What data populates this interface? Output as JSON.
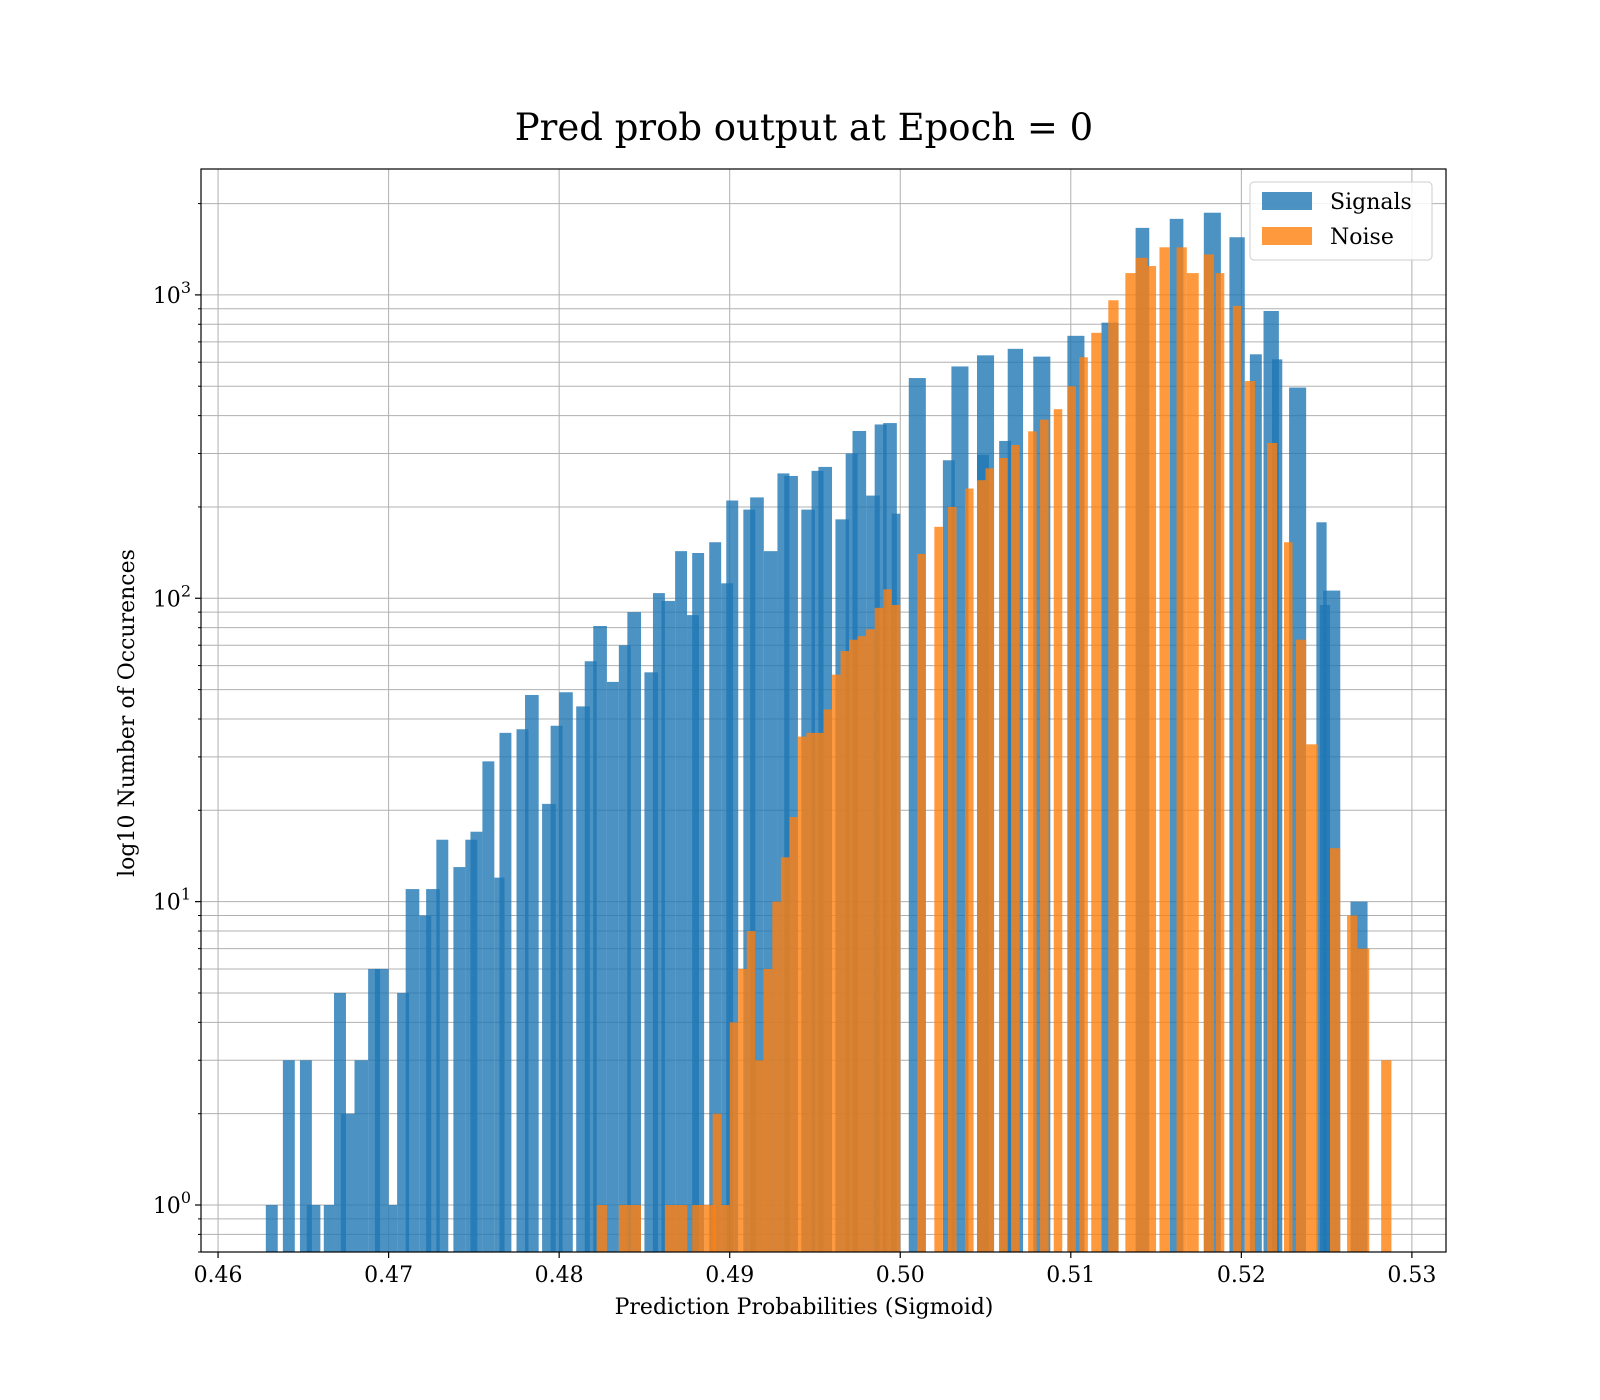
{
  "chart_data": {
    "type": "bar",
    "title": "Pred prob output at Epoch = 0",
    "xlabel": "Prediction Probabilities (Sigmoid)",
    "ylabel": "log10 Number of Occurences",
    "xlim": [
      0.459,
      0.532
    ],
    "ylim": [
      0.7,
      2600
    ],
    "yscale": "log",
    "grid": true,
    "legend_position": "top-right",
    "x_ticks": [
      "0.46",
      "0.47",
      "0.48",
      "0.49",
      "0.50",
      "0.51",
      "0.52",
      "0.53"
    ],
    "x_tick_values": [
      0.46,
      0.47,
      0.48,
      0.49,
      0.5,
      0.51,
      0.52,
      0.53
    ],
    "y_ticks": [
      {
        "base": "10",
        "exp": "0",
        "value": 1
      },
      {
        "base": "10",
        "exp": "1",
        "value": 10
      },
      {
        "base": "10",
        "exp": "2",
        "value": 100
      },
      {
        "base": "10",
        "exp": "3",
        "value": 1000
      }
    ],
    "series": [
      {
        "name": "Signals",
        "color": "#1f77b4",
        "bars": [
          [
            0.4628,
            0.4635,
            1
          ],
          [
            0.4638,
            0.4645,
            3
          ],
          [
            0.4648,
            0.4655,
            3
          ],
          [
            0.4652,
            0.466,
            1
          ],
          [
            0.4662,
            0.4668,
            1
          ],
          [
            0.4668,
            0.4675,
            5
          ],
          [
            0.4672,
            0.468,
            2
          ],
          [
            0.468,
            0.4688,
            3
          ],
          [
            0.4688,
            0.4695,
            6
          ],
          [
            0.4692,
            0.47,
            6
          ],
          [
            0.47,
            0.4705,
            1
          ],
          [
            0.4705,
            0.4712,
            5
          ],
          [
            0.471,
            0.4718,
            11
          ],
          [
            0.4718,
            0.4725,
            9
          ],
          [
            0.4722,
            0.473,
            11
          ],
          [
            0.4728,
            0.4735,
            16
          ],
          [
            0.4738,
            0.4745,
            13
          ],
          [
            0.4745,
            0.4752,
            16
          ],
          [
            0.4748,
            0.4755,
            17
          ],
          [
            0.4755,
            0.4762,
            29
          ],
          [
            0.4762,
            0.4768,
            12
          ],
          [
            0.4765,
            0.4772,
            36
          ],
          [
            0.4775,
            0.4782,
            37
          ],
          [
            0.478,
            0.4788,
            48
          ],
          [
            0.479,
            0.4798,
            21
          ],
          [
            0.4795,
            0.4802,
            38
          ],
          [
            0.48,
            0.4808,
            49
          ],
          [
            0.481,
            0.4818,
            44
          ],
          [
            0.4815,
            0.4822,
            62
          ],
          [
            0.482,
            0.4828,
            81
          ],
          [
            0.4828,
            0.4835,
            53
          ],
          [
            0.4835,
            0.4842,
            70
          ],
          [
            0.484,
            0.4848,
            90
          ],
          [
            0.485,
            0.4858,
            57
          ],
          [
            0.4855,
            0.4862,
            104
          ],
          [
            0.486,
            0.4868,
            98
          ],
          [
            0.4868,
            0.4875,
            143
          ],
          [
            0.4875,
            0.4882,
            88
          ],
          [
            0.4878,
            0.4885,
            141
          ],
          [
            0.4888,
            0.4895,
            153
          ],
          [
            0.4895,
            0.4902,
            112
          ],
          [
            0.4898,
            0.4905,
            210
          ],
          [
            0.4908,
            0.4915,
            196
          ],
          [
            0.4912,
            0.492,
            215
          ],
          [
            0.492,
            0.4928,
            143
          ],
          [
            0.4928,
            0.4935,
            258
          ],
          [
            0.4932,
            0.494,
            253
          ],
          [
            0.4942,
            0.495,
            196
          ],
          [
            0.4948,
            0.4955,
            263
          ],
          [
            0.4952,
            0.496,
            271
          ],
          [
            0.4962,
            0.497,
            182
          ],
          [
            0.4968,
            0.4975,
            300
          ],
          [
            0.4972,
            0.498,
            356
          ],
          [
            0.498,
            0.4988,
            218
          ],
          [
            0.4985,
            0.4992,
            374
          ],
          [
            0.499,
            0.4998,
            378
          ],
          [
            0.4995,
            0.5,
            190
          ],
          [
            0.5005,
            0.5015,
            532
          ],
          [
            0.5025,
            0.5032,
            285
          ],
          [
            0.503,
            0.504,
            581
          ],
          [
            0.5045,
            0.5052,
            297
          ],
          [
            0.5045,
            0.5055,
            632
          ],
          [
            0.5058,
            0.5065,
            330
          ],
          [
            0.5063,
            0.5072,
            664
          ],
          [
            0.5078,
            0.5088,
            626
          ],
          [
            0.5098,
            0.5108,
            733
          ],
          [
            0.5118,
            0.5128,
            810
          ],
          [
            0.5138,
            0.5146,
            1663
          ],
          [
            0.5158,
            0.5166,
            1781
          ],
          [
            0.5178,
            0.5188,
            1866
          ],
          [
            0.5193,
            0.5202,
            1549
          ],
          [
            0.5205,
            0.5212,
            637
          ],
          [
            0.5213,
            0.5222,
            885
          ],
          [
            0.5218,
            0.5224,
            613
          ],
          [
            0.5228,
            0.5238,
            495
          ],
          [
            0.5244,
            0.525,
            178
          ],
          [
            0.5246,
            0.5252,
            95
          ],
          [
            0.5248,
            0.5258,
            106
          ],
          [
            0.5264,
            0.5274,
            10
          ]
        ]
      },
      {
        "name": "Noise",
        "color": "#ff7f0e",
        "bars": [
          [
            0.4822,
            0.4828,
            1
          ],
          [
            0.4835,
            0.4842,
            1
          ],
          [
            0.4842,
            0.4848,
            1
          ],
          [
            0.4862,
            0.487,
            1
          ],
          [
            0.487,
            0.4875,
            1
          ],
          [
            0.4878,
            0.4885,
            1
          ],
          [
            0.4885,
            0.4892,
            1
          ],
          [
            0.489,
            0.4895,
            2
          ],
          [
            0.4895,
            0.49,
            1
          ],
          [
            0.49,
            0.4905,
            4
          ],
          [
            0.4905,
            0.491,
            6
          ],
          [
            0.491,
            0.4915,
            8
          ],
          [
            0.4915,
            0.492,
            3
          ],
          [
            0.492,
            0.4925,
            6
          ],
          [
            0.4925,
            0.493,
            10
          ],
          [
            0.493,
            0.4935,
            14
          ],
          [
            0.4935,
            0.494,
            19
          ],
          [
            0.494,
            0.4945,
            35
          ],
          [
            0.4945,
            0.495,
            36
          ],
          [
            0.495,
            0.4955,
            36
          ],
          [
            0.4955,
            0.496,
            43
          ],
          [
            0.496,
            0.4965,
            56
          ],
          [
            0.4965,
            0.497,
            67
          ],
          [
            0.497,
            0.4975,
            73
          ],
          [
            0.4975,
            0.498,
            75
          ],
          [
            0.498,
            0.4985,
            79
          ],
          [
            0.4985,
            0.499,
            93
          ],
          [
            0.499,
            0.4995,
            107
          ],
          [
            0.4995,
            0.5,
            95
          ],
          [
            0.501,
            0.5015,
            140
          ],
          [
            0.502,
            0.5025,
            172
          ],
          [
            0.5028,
            0.5033,
            200
          ],
          [
            0.5038,
            0.5043,
            230
          ],
          [
            0.5045,
            0.505,
            245
          ],
          [
            0.505,
            0.5055,
            268
          ],
          [
            0.5058,
            0.5063,
            290
          ],
          [
            0.5065,
            0.507,
            320
          ],
          [
            0.5075,
            0.508,
            355
          ],
          [
            0.5082,
            0.5087,
            388
          ],
          [
            0.509,
            0.5095,
            420
          ],
          [
            0.5098,
            0.5103,
            500
          ],
          [
            0.5105,
            0.511,
            623
          ],
          [
            0.5112,
            0.5118,
            750
          ],
          [
            0.5122,
            0.5128,
            960
          ],
          [
            0.5132,
            0.5138,
            1180
          ],
          [
            0.5138,
            0.5145,
            1325
          ],
          [
            0.5145,
            0.515,
            1245
          ],
          [
            0.5152,
            0.5158,
            1435
          ],
          [
            0.5162,
            0.5168,
            1435
          ],
          [
            0.5168,
            0.5175,
            1180
          ],
          [
            0.5178,
            0.5184,
            1360
          ],
          [
            0.5185,
            0.519,
            1180
          ],
          [
            0.5195,
            0.52,
            920
          ],
          [
            0.5202,
            0.5208,
            520
          ],
          [
            0.5215,
            0.5221,
            325
          ],
          [
            0.5225,
            0.523,
            153
          ],
          [
            0.5232,
            0.5238,
            73
          ],
          [
            0.5238,
            0.5245,
            33
          ],
          [
            0.5252,
            0.5258,
            15
          ],
          [
            0.5262,
            0.5268,
            9
          ],
          [
            0.5268,
            0.5275,
            7
          ],
          [
            0.5282,
            0.5288,
            3
          ]
        ]
      }
    ]
  }
}
